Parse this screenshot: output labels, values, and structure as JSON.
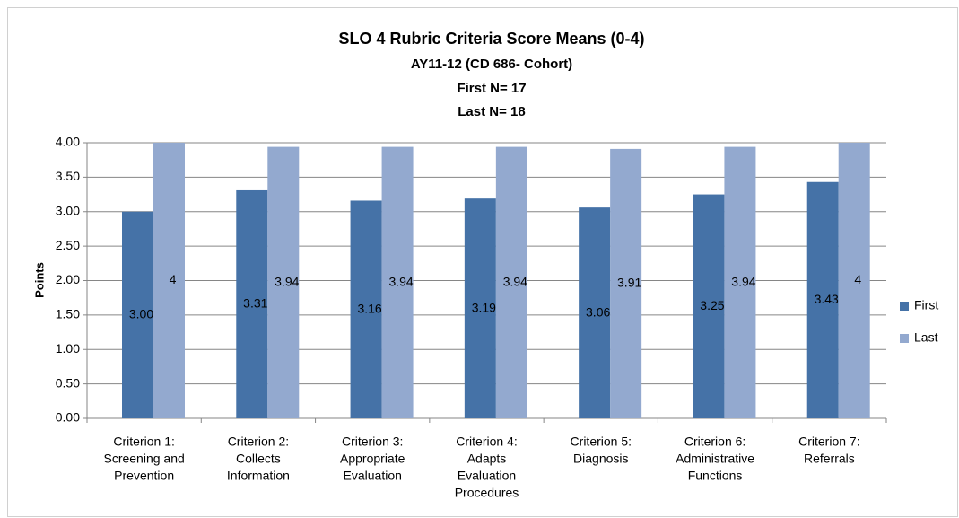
{
  "chart_data": {
    "type": "bar",
    "title": "SLO 4 Rubric Criteria Score Means (0-4)",
    "subtitle": [
      "AY11-12 (CD 686- Cohort)",
      "First N= 17",
      "Last N= 18"
    ],
    "y_label": "Points",
    "categories": [
      [
        "Criterion 1:",
        "Screening and",
        "Prevention"
      ],
      [
        "Criterion 2:",
        "Collects",
        "Information"
      ],
      [
        "Criterion 3:",
        "Appropriate",
        "Evaluation"
      ],
      [
        "Criterion 4:",
        "Adapts",
        "Evaluation",
        "Procedures"
      ],
      [
        "Criterion 5:",
        "Diagnosis"
      ],
      [
        "Criterion 6:",
        "Administrative",
        "Functions"
      ],
      [
        "Criterion 7:",
        "Referrals"
      ]
    ],
    "series": [
      {
        "name": "First",
        "color": "#4572a7",
        "values": [
          3.0,
          3.31,
          3.16,
          3.19,
          3.06,
          3.25,
          3.43
        ],
        "value_labels": [
          "3.00",
          "3.31",
          "3.16",
          "3.19",
          "3.06",
          "3.25",
          "3.43"
        ]
      },
      {
        "name": "Last",
        "color": "#93a9cf",
        "values": [
          4,
          3.94,
          3.94,
          3.94,
          3.91,
          3.94,
          4
        ],
        "value_labels": [
          "4",
          "3.94",
          "3.94",
          "3.94",
          "3.91",
          "3.94",
          "4"
        ]
      }
    ],
    "ylim": [
      0,
      4
    ],
    "yticks": [
      {
        "value": 0,
        "label": "0.00"
      },
      {
        "value": 0.5,
        "label": "0.50"
      },
      {
        "value": 1,
        "label": "1.00"
      },
      {
        "value": 1.5,
        "label": "1.50"
      },
      {
        "value": 2,
        "label": "2.00"
      },
      {
        "value": 2.5,
        "label": "2.50"
      },
      {
        "value": 3,
        "label": "3.00"
      },
      {
        "value": 3.5,
        "label": "3.50"
      },
      {
        "value": 4,
        "label": "4.00"
      }
    ],
    "grid": true,
    "legend": "right"
  }
}
